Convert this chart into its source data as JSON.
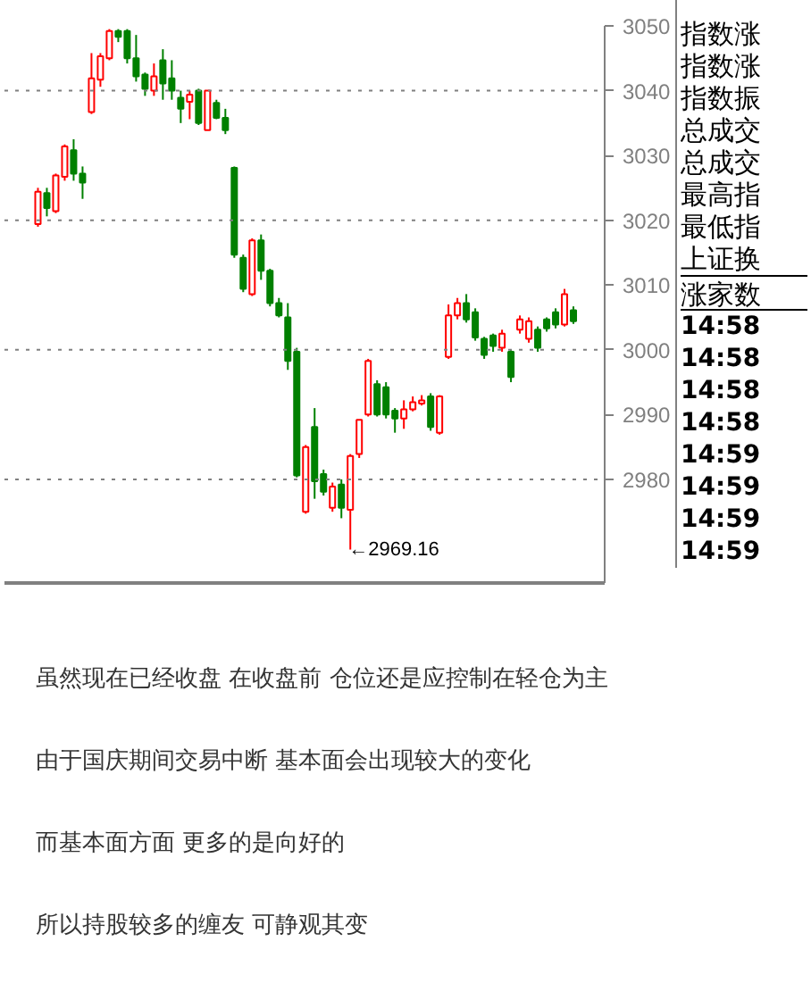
{
  "chart_data": {
    "type": "candlestick",
    "categories": [
      null,
      null,
      null,
      null,
      null,
      null,
      null,
      null,
      null,
      null,
      null,
      null,
      null,
      null,
      null,
      null,
      null,
      null,
      null,
      null,
      null,
      null,
      null,
      null,
      null,
      null,
      null,
      null,
      null,
      null,
      null,
      null,
      null,
      null,
      null,
      null,
      null,
      null,
      null,
      null,
      null,
      null,
      null,
      null,
      null,
      null,
      null,
      null,
      null,
      null,
      null,
      null,
      null,
      null,
      null,
      null,
      null,
      null,
      null,
      null,
      null
    ],
    "ohlc": [
      [
        3019.4,
        3025,
        3019,
        3024.4
      ],
      [
        3024.2,
        3025,
        3020.6,
        3021.9
      ],
      [
        3021.4,
        3027.2,
        3021.1,
        3026.9
      ],
      [
        3026.7,
        3031.7,
        3026.1,
        3031.4
      ],
      [
        3030.8,
        3032.5,
        3026.1,
        3027.2
      ],
      [
        3027.2,
        3028.3,
        3023.3,
        3025.8
      ],
      [
        3036.7,
        3045.8,
        3036.4,
        3041.9
      ],
      [
        3041.7,
        3045.8,
        3040.6,
        3045.3
      ],
      [
        3045,
        3049.5,
        3044.7,
        3049.2
      ],
      [
        3049.2,
        3049.5,
        3047.5,
        3048.3
      ],
      [
        3049.2,
        3049.5,
        3044.2,
        3045
      ],
      [
        3045,
        3048.6,
        3041.4,
        3042.2
      ],
      [
        3042.5,
        3042.8,
        3039.2,
        3040.3
      ],
      [
        3040,
        3044.2,
        3039.2,
        3042.2
      ],
      [
        3044.7,
        3046.4,
        3038.6,
        3041.1
      ],
      [
        3041.9,
        3044.7,
        3038.6,
        3040
      ],
      [
        3038.9,
        3040,
        3035,
        3037.2
      ],
      [
        3038.3,
        3040,
        3035.6,
        3039.4
      ],
      [
        3040,
        3040.3,
        3034.7,
        3035
      ],
      [
        3033.9,
        3040,
        3033.9,
        3040
      ],
      [
        3038.1,
        3038.6,
        3035.6,
        3035.8
      ],
      [
        3035.8,
        3037.2,
        3033.3,
        3033.9
      ],
      [
        3028.1,
        3028.3,
        3014.2,
        3014.7
      ],
      [
        3014.2,
        3014.7,
        3008.9,
        3009.4
      ],
      [
        3008.6,
        3017.2,
        3008.3,
        3016.9
      ],
      [
        3016.9,
        3017.8,
        3010.8,
        3012.2
      ],
      [
        3012.2,
        3012.5,
        3006.7,
        3007.2
      ],
      [
        3007.2,
        3008,
        3005,
        3005.3
      ],
      [
        3005,
        3007.2,
        2996.9,
        2998.3
      ],
      [
        2999.7,
        3000.3,
        2980.3,
        2980.6
      ],
      [
        2975,
        2985.3,
        2974.7,
        2985
      ],
      [
        2988.1,
        2991,
        2977,
        2979.7
      ],
      [
        2980.8,
        2981.5,
        2977.5,
        2978.1
      ],
      [
        2975.6,
        2979.5,
        2975,
        2978.9
      ],
      [
        2979.2,
        2980,
        2974,
        2975.6
      ],
      [
        2975.3,
        2983.9,
        2969.16,
        2983.6
      ],
      [
        2983.9,
        2989.2,
        2983.3,
        2989.2
      ],
      [
        2990,
        2998.6,
        2989.7,
        2998.3
      ],
      [
        2994.7,
        2995.3,
        2989.7,
        2990
      ],
      [
        2994.2,
        2995,
        2989.4,
        2990
      ],
      [
        2990.6,
        2991,
        2987.2,
        2989.4
      ],
      [
        2989.4,
        2992.2,
        2987.8,
        2990.8
      ],
      [
        2990.8,
        2992.8,
        2990.5,
        2991.9
      ],
      [
        2991.7,
        2993,
        2991.4,
        2992.2
      ],
      [
        2992.8,
        2993.3,
        2987.5,
        2988.1
      ],
      [
        2987.2,
        2993,
        2986.9,
        2992.8
      ],
      [
        2998.9,
        3007,
        2998.6,
        3005.3
      ],
      [
        3005.3,
        3008,
        3004.7,
        3007.2
      ],
      [
        3007.2,
        3008.6,
        3004.2,
        3004.7
      ],
      [
        3005.8,
        3006.4,
        3001.4,
        3001.9
      ],
      [
        3001.7,
        3002,
        2998.6,
        2999.2
      ],
      [
        3002.2,
        3002.5,
        2999.7,
        3000.6
      ],
      [
        3000.3,
        3003.1,
        2999.7,
        3002.5
      ],
      [
        2999.7,
        3000,
        2995,
        2995.8
      ],
      [
        3003.1,
        3005.3,
        3002.5,
        3004.7
      ],
      [
        3001.7,
        3005,
        3001.1,
        3004.4
      ],
      [
        3003.1,
        3003.6,
        2999.7,
        3000.3
      ],
      [
        3004.7,
        3005,
        3002.8,
        3003.3
      ],
      [
        3005.8,
        3006.4,
        3003.3,
        3003.9
      ],
      [
        3003.9,
        3009.4,
        3003.6,
        3008.6
      ],
      [
        3006.1,
        3006.7,
        3004,
        3004.4
      ]
    ],
    "colors": [
      "#ff0000",
      "#008000",
      "#ff0000",
      "#ff0000",
      "#008000",
      "#008000",
      "#ff0000",
      "#ff0000",
      "#ff0000",
      "#008000",
      "#008000",
      "#008000",
      "#008000",
      "#ff0000",
      "#008000",
      "#008000",
      "#008000",
      "#ff0000",
      "#008000",
      "#ff0000",
      "#008000",
      "#008000",
      "#008000",
      "#008000",
      "#ff0000",
      "#008000",
      "#008000",
      "#008000",
      "#008000",
      "#008000",
      "#ff0000",
      "#008000",
      "#008000",
      "#ff0000",
      "#008000",
      "#ff0000",
      "#ff0000",
      "#ff0000",
      "#008000",
      "#008000",
      "#008000",
      "#ff0000",
      "#ff0000",
      "#ff0000",
      "#008000",
      "#ff0000",
      "#ff0000",
      "#ff0000",
      "#008000",
      "#008000",
      "#008000",
      "#008000",
      "#ff0000",
      "#008000",
      "#ff0000",
      "#ff0000",
      "#008000",
      "#008000",
      "#008000",
      "#ff0000",
      "#008000"
    ],
    "ylim": [
      2964,
      3050
    ],
    "yticks": [
      2980,
      2990,
      3000,
      3010,
      3020,
      3030,
      3040,
      3050
    ],
    "tick_labels": "y",
    "ref_lines": [
      {
        "axis": "y",
        "value": 3040,
        "label": null,
        "color": "#808080",
        "line_style": "dotted"
      },
      {
        "axis": "y",
        "value": 3020,
        "label": null,
        "color": "#808080",
        "line_style": "dotted"
      },
      {
        "axis": "y",
        "value": 3000,
        "label": null,
        "color": "#808080",
        "line_style": "dotted"
      },
      {
        "axis": "y",
        "value": 2980,
        "label": null,
        "color": "#808080",
        "line_style": "dotted"
      }
    ],
    "annotations": [
      "←2969.16",
      "指数涨",
      "指数涨",
      "指数振",
      "总成交",
      "总成交",
      "最高指",
      "最低指",
      "上证换",
      "涨家数",
      "14:58",
      "14:58",
      "14:58",
      "14:58",
      "14:59",
      "14:59",
      "14:59",
      "14:59",
      "虽然现在已经收盘 在收盘前 仓位还是应控制在轻仓为主",
      "由于国庆期间交易中断 基本面会出现较大的变化",
      "而基本面方面 更多的是向好的",
      "所以持股较多的缠友 可静观其变"
    ]
  }
}
